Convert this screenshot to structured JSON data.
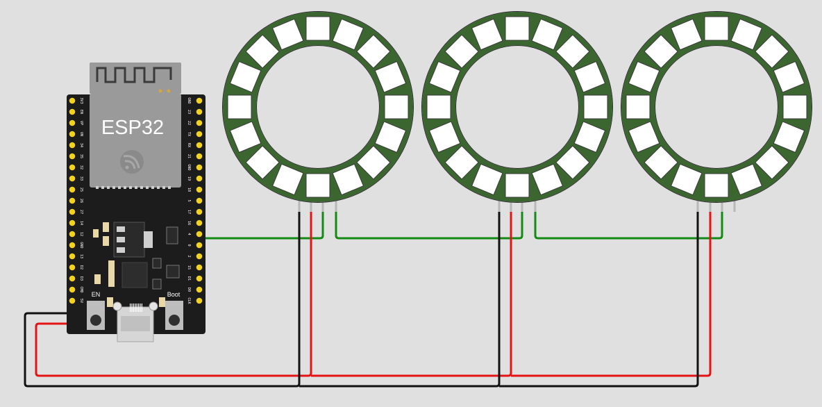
{
  "board": {
    "title": "ESP32",
    "en_label": "EN",
    "boot_label": "Boot",
    "left_pins": [
      "3V3",
      "EN",
      "VP",
      "VN",
      "34",
      "35",
      "32",
      "33",
      "25",
      "26",
      "27",
      "14",
      "12",
      "GND",
      "13",
      "D2",
      "D3",
      "CMD",
      "5V"
    ],
    "right_pins": [
      "GND",
      "23",
      "22",
      "TX",
      "RX",
      "21",
      "GND",
      "19",
      "18",
      "5",
      "17",
      "16",
      "4",
      "0",
      "2",
      "15",
      "D1",
      "D0",
      "CLK"
    ]
  },
  "rings": [
    {
      "id": "ring-1",
      "pixel_count": 16
    },
    {
      "id": "ring-2",
      "pixel_count": 16
    },
    {
      "id": "ring-3",
      "pixel_count": 16
    }
  ],
  "wire_colors": {
    "ground": "#111111",
    "power": "#e41414",
    "data": "#138a13"
  },
  "colors": {
    "ring_pcb": "#3b6630",
    "board_pcb": "#1c1c1c",
    "module": "#9a9a9a",
    "pin_pad": "#f2d21e"
  }
}
